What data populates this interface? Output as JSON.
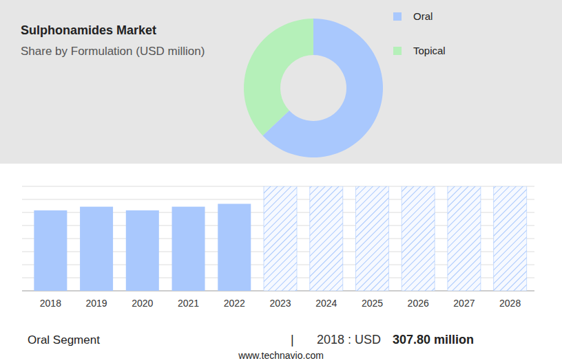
{
  "chart_data": [
    {
      "type": "pie",
      "title": "Sulphonamides Market",
      "subtitle": "Share by Formulation (USD million)",
      "categories": [
        "Oral",
        "Topical"
      ],
      "values": [
        63,
        37
      ],
      "colors": [
        "#a9c8fd",
        "#b5f0b9"
      ],
      "legend": "top-right"
    },
    {
      "type": "bar",
      "categories": [
        "2018",
        "2019",
        "2020",
        "2021",
        "2022",
        "2023",
        "2024",
        "2025",
        "2026",
        "2027",
        "2028"
      ],
      "series": [
        {
          "color": "#a9c8fd",
          "values": [
            307.8,
            322,
            308,
            322,
            333,
            null,
            null,
            null,
            null,
            null,
            null
          ]
        },
        {
          "color": "#a9c8fd",
          "line_style": "hatched",
          "values": [
            null,
            null,
            null,
            null,
            null,
            400,
            400,
            400,
            400,
            400,
            400
          ]
        }
      ],
      "ylim": [
        0,
        400
      ],
      "yticks": [
        0,
        50,
        100,
        150,
        200,
        250,
        300,
        350,
        400
      ],
      "grid": true,
      "tick_labels": "x",
      "annotations": [
        "Oral Segment",
        "|",
        "2018 : USD",
        "307.80 million",
        "www.technavio.com"
      ]
    }
  ]
}
